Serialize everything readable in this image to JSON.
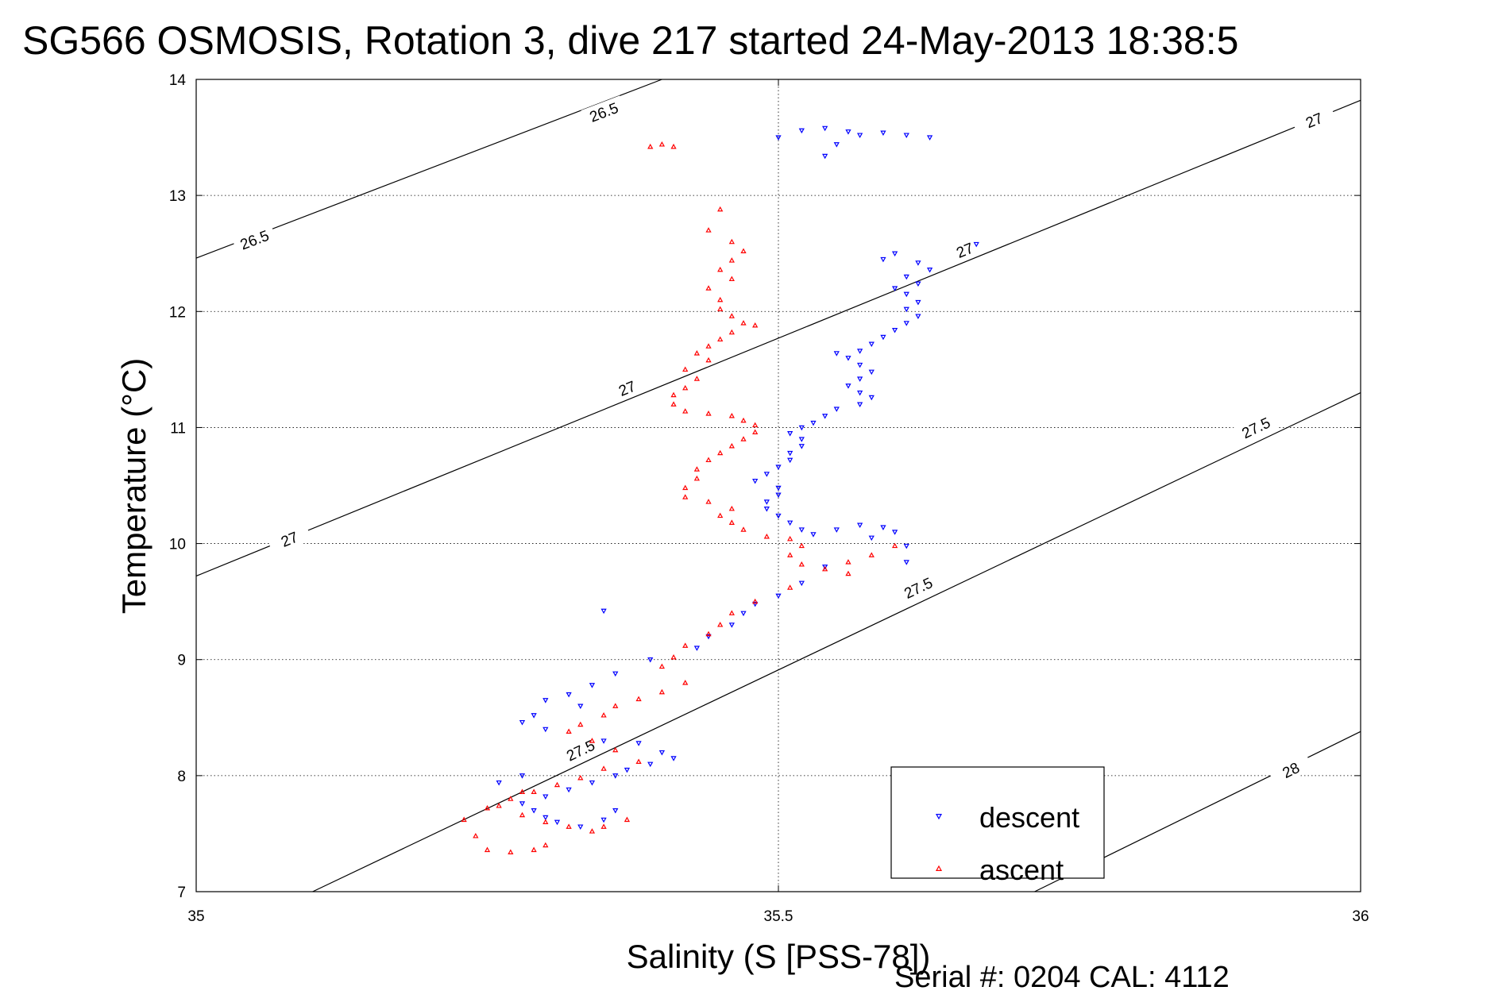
{
  "chart_data": {
    "type": "scatter",
    "title": "SG566 OSMOSIS, Rotation 3, dive 217 started 24-May-2013 18:38:5",
    "xlabel": "Salinity (S [PSS-78])",
    "ylabel": "Temperature (°C)",
    "xlim": [
      35,
      36
    ],
    "ylim": [
      7,
      14
    ],
    "x_ticks": [
      "35",
      "35.5",
      "36"
    ],
    "y_ticks": [
      "7",
      "8",
      "9",
      "10",
      "11",
      "12",
      "13",
      "14"
    ],
    "grid": true,
    "legend_position": "bottom-right",
    "footer": "Serial #: 0204  CAL: 4112",
    "density_contours": [
      {
        "level": "26.5",
        "points": [
          [
            35.0,
            12.46
          ],
          [
            35.4,
            14.0
          ]
        ],
        "labels": [
          [
            35.05,
            12.62
          ],
          [
            35.35,
            13.72
          ]
        ]
      },
      {
        "level": "27",
        "points": [
          [
            35.0,
            9.72
          ],
          [
            36.0,
            13.82
          ]
        ],
        "labels": [
          [
            35.08,
            10.04
          ],
          [
            35.37,
            11.34
          ],
          [
            35.66,
            12.53
          ],
          [
            35.96,
            13.65
          ]
        ]
      },
      {
        "level": "27.5",
        "points": [
          [
            35.1,
            7.0
          ],
          [
            36.0,
            11.3
          ]
        ],
        "labels": [
          [
            35.33,
            8.22
          ],
          [
            35.62,
            9.62
          ],
          [
            35.91,
            11.0
          ]
        ]
      },
      {
        "level": "28",
        "points": [
          [
            35.72,
            7.0
          ],
          [
            36.0,
            8.38
          ]
        ],
        "labels": [
          [
            35.94,
            8.05
          ]
        ]
      }
    ],
    "series": [
      {
        "name": "descent",
        "color": "#0000ff",
        "marker": "triangle-down",
        "points": [
          [
            35.5,
            13.5
          ],
          [
            35.52,
            13.56
          ],
          [
            35.54,
            13.58
          ],
          [
            35.56,
            13.55
          ],
          [
            35.57,
            13.52
          ],
          [
            35.59,
            13.54
          ],
          [
            35.61,
            13.52
          ],
          [
            35.63,
            13.5
          ],
          [
            35.55,
            13.44
          ],
          [
            35.54,
            13.34
          ],
          [
            35.67,
            12.58
          ],
          [
            35.6,
            12.5
          ],
          [
            35.59,
            12.45
          ],
          [
            35.62,
            12.42
          ],
          [
            35.63,
            12.36
          ],
          [
            35.61,
            12.3
          ],
          [
            35.62,
            12.24
          ],
          [
            35.6,
            12.2
          ],
          [
            35.61,
            12.15
          ],
          [
            35.62,
            12.08
          ],
          [
            35.61,
            12.02
          ],
          [
            35.62,
            11.96
          ],
          [
            35.61,
            11.9
          ],
          [
            35.6,
            11.84
          ],
          [
            35.59,
            11.78
          ],
          [
            35.58,
            11.72
          ],
          [
            35.57,
            11.66
          ],
          [
            35.55,
            11.64
          ],
          [
            35.56,
            11.6
          ],
          [
            35.57,
            11.54
          ],
          [
            35.58,
            11.48
          ],
          [
            35.57,
            11.42
          ],
          [
            35.56,
            11.36
          ],
          [
            35.57,
            11.3
          ],
          [
            35.58,
            11.26
          ],
          [
            35.57,
            11.2
          ],
          [
            35.55,
            11.16
          ],
          [
            35.54,
            11.1
          ],
          [
            35.53,
            11.04
          ],
          [
            35.52,
            11.0
          ],
          [
            35.51,
            10.95
          ],
          [
            35.52,
            10.9
          ],
          [
            35.52,
            10.84
          ],
          [
            35.51,
            10.78
          ],
          [
            35.51,
            10.72
          ],
          [
            35.5,
            10.66
          ],
          [
            35.49,
            10.6
          ],
          [
            35.48,
            10.54
          ],
          [
            35.5,
            10.48
          ],
          [
            35.5,
            10.42
          ],
          [
            35.49,
            10.36
          ],
          [
            35.49,
            10.3
          ],
          [
            35.5,
            10.24
          ],
          [
            35.51,
            10.18
          ],
          [
            35.52,
            10.12
          ],
          [
            35.53,
            10.08
          ],
          [
            35.55,
            10.12
          ],
          [
            35.57,
            10.16
          ],
          [
            35.59,
            10.14
          ],
          [
            35.6,
            10.1
          ],
          [
            35.58,
            10.05
          ],
          [
            35.61,
            9.98
          ],
          [
            35.61,
            9.84
          ],
          [
            35.54,
            9.8
          ],
          [
            35.52,
            9.66
          ],
          [
            35.5,
            9.55
          ],
          [
            35.48,
            9.48
          ],
          [
            35.47,
            9.4
          ],
          [
            35.35,
            9.42
          ],
          [
            35.46,
            9.3
          ],
          [
            35.44,
            9.2
          ],
          [
            35.43,
            9.1
          ],
          [
            35.39,
            9.0
          ],
          [
            35.36,
            8.88
          ],
          [
            35.34,
            8.78
          ],
          [
            35.32,
            8.7
          ],
          [
            35.3,
            8.65
          ],
          [
            35.33,
            8.6
          ],
          [
            35.29,
            8.52
          ],
          [
            35.28,
            8.46
          ],
          [
            35.3,
            8.4
          ],
          [
            35.35,
            8.3
          ],
          [
            35.38,
            8.28
          ],
          [
            35.4,
            8.2
          ],
          [
            35.41,
            8.15
          ],
          [
            35.39,
            8.1
          ],
          [
            35.37,
            8.05
          ],
          [
            35.36,
            8.0
          ],
          [
            35.34,
            7.94
          ],
          [
            35.32,
            7.88
          ],
          [
            35.3,
            7.82
          ],
          [
            35.28,
            7.76
          ],
          [
            35.29,
            7.7
          ],
          [
            35.3,
            7.64
          ],
          [
            35.31,
            7.6
          ],
          [
            35.33,
            7.56
          ],
          [
            35.35,
            7.62
          ],
          [
            35.36,
            7.7
          ],
          [
            35.28,
            8.0
          ],
          [
            35.26,
            7.94
          ]
        ]
      },
      {
        "name": "ascent",
        "color": "#ff0000",
        "marker": "triangle-up",
        "points": [
          [
            35.39,
            13.42
          ],
          [
            35.4,
            13.44
          ],
          [
            35.41,
            13.42
          ],
          [
            35.45,
            12.88
          ],
          [
            35.44,
            12.7
          ],
          [
            35.46,
            12.6
          ],
          [
            35.47,
            12.52
          ],
          [
            35.46,
            12.44
          ],
          [
            35.45,
            12.36
          ],
          [
            35.46,
            12.28
          ],
          [
            35.44,
            12.2
          ],
          [
            35.45,
            12.1
          ],
          [
            35.45,
            12.02
          ],
          [
            35.46,
            11.96
          ],
          [
            35.47,
            11.9
          ],
          [
            35.48,
            11.88
          ],
          [
            35.46,
            11.82
          ],
          [
            35.45,
            11.76
          ],
          [
            35.44,
            11.7
          ],
          [
            35.43,
            11.64
          ],
          [
            35.44,
            11.58
          ],
          [
            35.42,
            11.5
          ],
          [
            35.43,
            11.42
          ],
          [
            35.42,
            11.34
          ],
          [
            35.41,
            11.28
          ],
          [
            35.41,
            11.2
          ],
          [
            35.42,
            11.14
          ],
          [
            35.44,
            11.12
          ],
          [
            35.46,
            11.1
          ],
          [
            35.47,
            11.06
          ],
          [
            35.48,
            11.02
          ],
          [
            35.48,
            10.96
          ],
          [
            35.47,
            10.9
          ],
          [
            35.46,
            10.84
          ],
          [
            35.45,
            10.78
          ],
          [
            35.44,
            10.72
          ],
          [
            35.43,
            10.64
          ],
          [
            35.43,
            10.56
          ],
          [
            35.42,
            10.48
          ],
          [
            35.42,
            10.4
          ],
          [
            35.44,
            10.36
          ],
          [
            35.46,
            10.3
          ],
          [
            35.45,
            10.24
          ],
          [
            35.46,
            10.18
          ],
          [
            35.47,
            10.12
          ],
          [
            35.49,
            10.06
          ],
          [
            35.51,
            10.04
          ],
          [
            35.52,
            9.98
          ],
          [
            35.51,
            9.9
          ],
          [
            35.52,
            9.82
          ],
          [
            35.54,
            9.78
          ],
          [
            35.56,
            9.84
          ],
          [
            35.58,
            9.9
          ],
          [
            35.6,
            9.98
          ],
          [
            35.56,
            9.74
          ],
          [
            35.51,
            9.62
          ],
          [
            35.48,
            9.5
          ],
          [
            35.46,
            9.4
          ],
          [
            35.45,
            9.3
          ],
          [
            35.44,
            9.22
          ],
          [
            35.42,
            9.12
          ],
          [
            35.41,
            9.02
          ],
          [
            35.4,
            8.94
          ],
          [
            35.42,
            8.8
          ],
          [
            35.4,
            8.72
          ],
          [
            35.38,
            8.66
          ],
          [
            35.36,
            8.6
          ],
          [
            35.35,
            8.52
          ],
          [
            35.33,
            8.44
          ],
          [
            35.32,
            8.38
          ],
          [
            35.34,
            8.3
          ],
          [
            35.36,
            8.22
          ],
          [
            35.38,
            8.12
          ],
          [
            35.35,
            8.06
          ],
          [
            35.33,
            7.98
          ],
          [
            35.31,
            7.92
          ],
          [
            35.29,
            7.86
          ],
          [
            35.27,
            7.8
          ],
          [
            35.26,
            7.74
          ],
          [
            35.28,
            7.66
          ],
          [
            35.3,
            7.6
          ],
          [
            35.32,
            7.56
          ],
          [
            35.34,
            7.52
          ],
          [
            35.35,
            7.56
          ],
          [
            35.37,
            7.62
          ],
          [
            35.3,
            7.4
          ],
          [
            35.29,
            7.36
          ],
          [
            35.27,
            7.34
          ],
          [
            35.25,
            7.36
          ],
          [
            35.24,
            7.48
          ],
          [
            35.23,
            7.62
          ],
          [
            35.25,
            7.72
          ],
          [
            35.28,
            7.86
          ]
        ]
      }
    ]
  }
}
